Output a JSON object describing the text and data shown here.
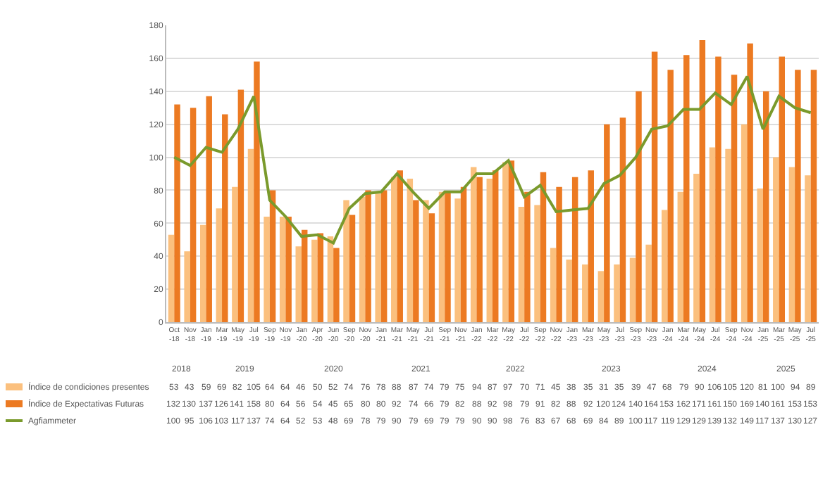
{
  "chart_data": {
    "type": "bar",
    "categories": [
      "Oct-18",
      "Nov-18",
      "Jan-19",
      "Mar-19",
      "May-19",
      "Jul-19",
      "Sep-19",
      "Nov-19",
      "Jan-20",
      "Apr-20",
      "Jun-20",
      "Sep-20",
      "Nov-20",
      "Jan-21",
      "Mar-21",
      "May-21",
      "Jul-21",
      "Sep-21",
      "Nov-21",
      "Jan-22",
      "Mar-22",
      "May-22",
      "Jul-22",
      "Sep-22",
      "Nov-22",
      "Jan-23",
      "Mar-23",
      "May-23",
      "Jul-23",
      "Sep-23",
      "Nov-23",
      "Jan-24",
      "Mar-24",
      "May-24",
      "Jul-24",
      "Sep-24",
      "Nov-24",
      "Jan-25",
      "Mar-25",
      "May-25",
      "Jul-25"
    ],
    "series": [
      {
        "name": "Índice de condiciones presentes",
        "color": "#fbc07e",
        "values": [
          53,
          43,
          59,
          69,
          82,
          105,
          64,
          64,
          46,
          50,
          52,
          74,
          76,
          78,
          88,
          87,
          74,
          79,
          75,
          94,
          87,
          97,
          70,
          71,
          45,
          38,
          35,
          31,
          35,
          39,
          47,
          68,
          79,
          90,
          106,
          105,
          120,
          81,
          100,
          94,
          89
        ]
      },
      {
        "name": "Índice de Expectativas Futuras",
        "color": "#ec7a22",
        "values": [
          132,
          130,
          137,
          126,
          141,
          158,
          80,
          64,
          56,
          54,
          45,
          65,
          80,
          80,
          92,
          74,
          66,
          79,
          82,
          88,
          92,
          98,
          79,
          91,
          82,
          88,
          92,
          120,
          124,
          140,
          164,
          153,
          162,
          171,
          161,
          150,
          169,
          140,
          161,
          153,
          153
        ]
      },
      {
        "name": "Agfiammeter",
        "type": "line",
        "color": "#7a9a2c",
        "values": [
          100,
          95,
          106,
          103,
          117,
          137,
          74,
          64,
          52,
          53,
          48,
          69,
          78,
          79,
          90,
          79,
          69,
          79,
          79,
          90,
          90,
          98,
          76,
          83,
          67,
          68,
          69,
          84,
          89,
          100,
          117,
          119,
          129,
          129,
          139,
          132,
          149,
          117,
          137,
          130,
          127
        ]
      }
    ],
    "ylim": [
      0,
      180
    ],
    "yticks": [
      0,
      20,
      40,
      60,
      80,
      100,
      120,
      140,
      160,
      180
    ],
    "grid": "y",
    "legend": "bottom left",
    "data_labels": true,
    "annotations": [
      "2018",
      "2019",
      "2020",
      "2021",
      "2022",
      "2023",
      "2024",
      "2025"
    ]
  }
}
